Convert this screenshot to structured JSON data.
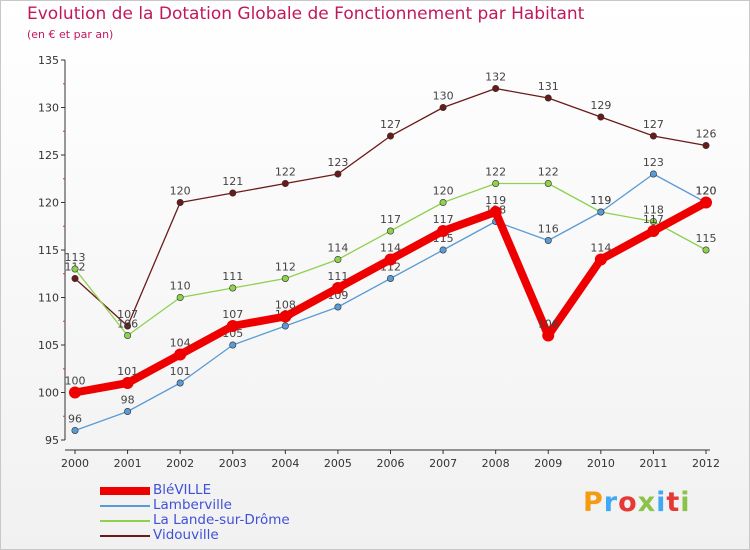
{
  "header": {
    "title": "Evolution de la Dotation Globale de Fonctionnement par Habitant",
    "subtitle": "(en € et par an)"
  },
  "brand": {
    "text": "Proxiti",
    "letters": [
      "P",
      "r",
      "o",
      "x",
      "i",
      "t",
      "i"
    ]
  },
  "chart_data": {
    "type": "line",
    "title": "Evolution de la Dotation Globale de Fonctionnement par Habitant",
    "subtitle": "(en € et par an)",
    "xlabel": "",
    "ylabel": "",
    "x": [
      "2000",
      "2001",
      "2002",
      "2003",
      "2004",
      "2005",
      "2006",
      "2007",
      "2008",
      "2009",
      "2010",
      "2011",
      "2012"
    ],
    "ylim": [
      95,
      135
    ],
    "yticks": [
      95,
      100,
      105,
      110,
      115,
      120,
      125,
      130,
      135
    ],
    "grid": false,
    "legend": "bottom-left",
    "series": [
      {
        "name": "Vidouville",
        "color": "#6b1a1a",
        "values": [
          112,
          107,
          120,
          121,
          122,
          123,
          127,
          130,
          132,
          131,
          129,
          127,
          126
        ]
      },
      {
        "name": "La Lande-sur-Drôme",
        "color": "#8fd14f",
        "values": [
          113,
          106,
          110,
          111,
          112,
          114,
          117,
          120,
          122,
          122,
          119,
          118,
          115
        ]
      },
      {
        "name": "Lamberville",
        "color": "#5b9bd5",
        "values": [
          96,
          98,
          101,
          105,
          107,
          109,
          112,
          115,
          118,
          116,
          119,
          123,
          120
        ]
      },
      {
        "name": "BléVILLE",
        "color": "#ee0000",
        "values": [
          100,
          101,
          104,
          107,
          108,
          111,
          114,
          117,
          119,
          106,
          114,
          117,
          120
        ]
      }
    ],
    "legend_order": [
      "BléVILLE",
      "Lamberville",
      "La Lande-sur-Drôme",
      "Vidouville"
    ]
  }
}
